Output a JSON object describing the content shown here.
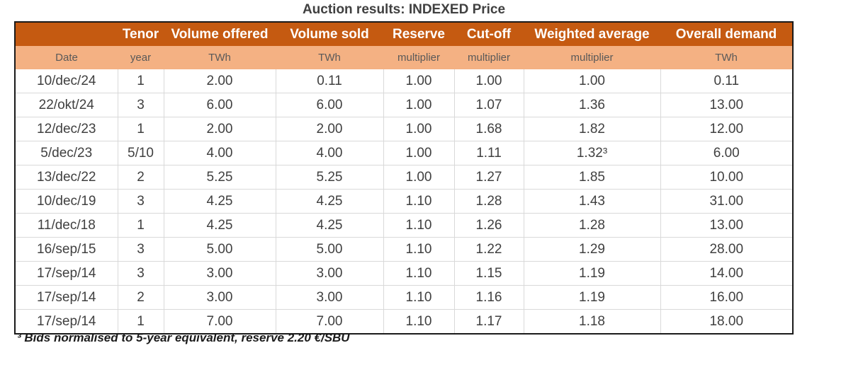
{
  "title": "Auction results: INDEXED Price",
  "table": {
    "headers": [
      "",
      "Tenor",
      "Volume offered",
      "Volume sold",
      "Reserve",
      "Cut-off",
      "Weighted average",
      "Overall demand"
    ],
    "units": [
      "Date",
      "year",
      "TWh",
      "TWh",
      "multiplier",
      "multiplier",
      "multiplier",
      "TWh"
    ],
    "rows": [
      [
        "10/dec/24",
        "1",
        "2.00",
        "0.11",
        "1.00",
        "1.00",
        "1.00",
        "0.11"
      ],
      [
        "22/okt/24",
        "3",
        "6.00",
        "6.00",
        "1.00",
        "1.07",
        "1.36",
        "13.00"
      ],
      [
        "12/dec/23",
        "1",
        "2.00",
        "2.00",
        "1.00",
        "1.68",
        "1.82",
        "12.00"
      ],
      [
        "5/dec/23",
        "5/10",
        "4.00",
        "4.00",
        "1.00",
        "1.11",
        "1.32³",
        "6.00"
      ],
      [
        "13/dec/22",
        "2",
        "5.25",
        "5.25",
        "1.00",
        "1.27",
        "1.85",
        "10.00"
      ],
      [
        "10/dec/19",
        "3",
        "4.25",
        "4.25",
        "1.10",
        "1.28",
        "1.43",
        "31.00"
      ],
      [
        "11/dec/18",
        "1",
        "4.25",
        "4.25",
        "1.10",
        "1.26",
        "1.28",
        "13.00"
      ],
      [
        "16/sep/15",
        "3",
        "5.00",
        "5.00",
        "1.10",
        "1.22",
        "1.29",
        "28.00"
      ],
      [
        "17/sep/14",
        "3",
        "3.00",
        "3.00",
        "1.10",
        "1.15",
        "1.19",
        "14.00"
      ],
      [
        "17/sep/14",
        "2",
        "3.00",
        "3.00",
        "1.10",
        "1.16",
        "1.19",
        "16.00"
      ],
      [
        "17/sep/14",
        "1",
        "7.00",
        "7.00",
        "1.10",
        "1.17",
        "1.18",
        "18.00"
      ]
    ]
  },
  "footnote": "³ Bids normalised to 5-year equivalent, reserve 2.20 €/SBU",
  "colors": {
    "header_bg": "#c55a11",
    "subheader_bg": "#f4b183"
  }
}
